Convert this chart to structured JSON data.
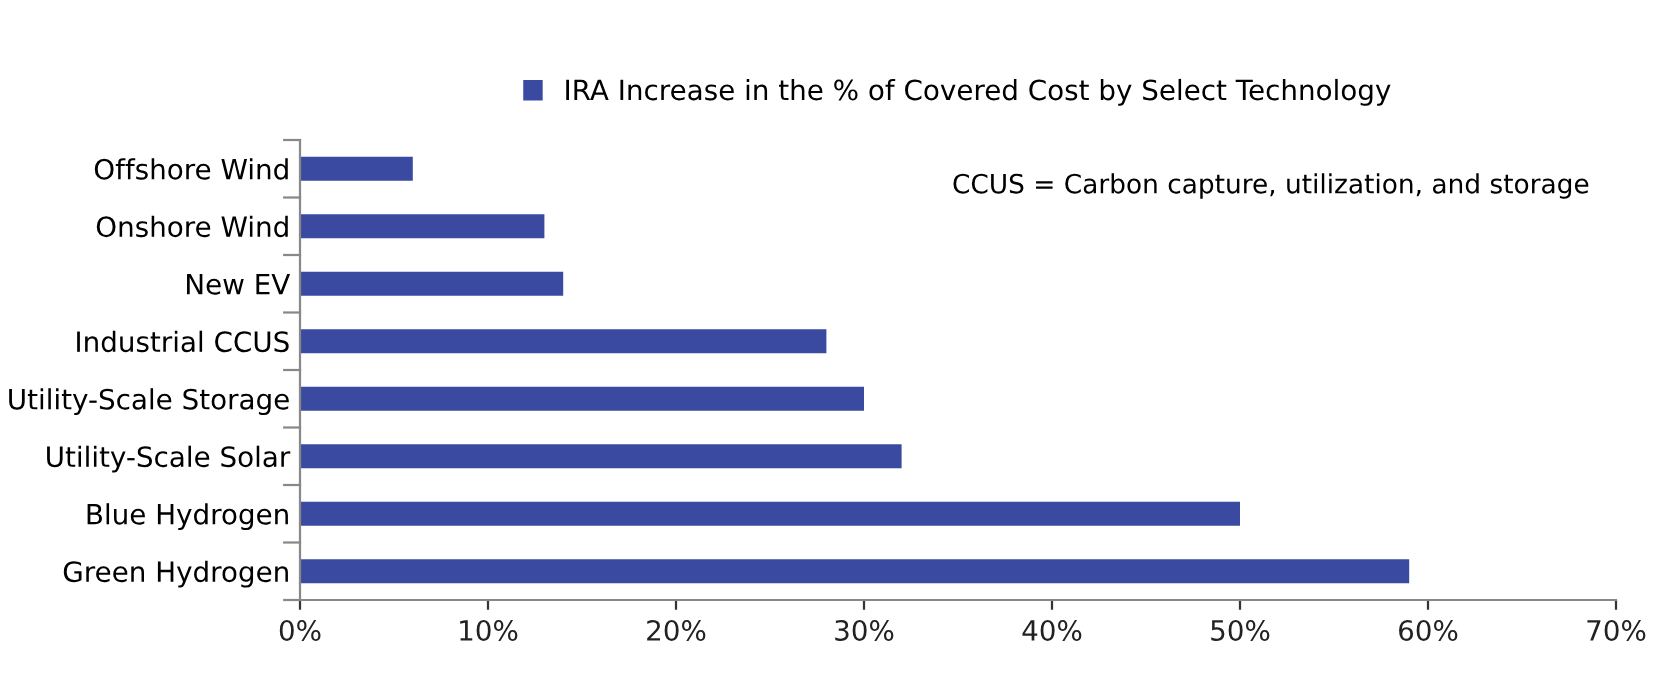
{
  "chart_data": {
    "type": "bar",
    "orientation": "horizontal",
    "categories": [
      "Offshore Wind",
      "Onshore Wind",
      "New EV",
      "Industrial CCUS",
      "Utility-Scale Storage",
      "Utility-Scale Solar",
      "Blue Hydrogen",
      "Green Hydrogen"
    ],
    "series": [
      {
        "name": "IRA Increase in the % of Covered Cost by Select Technology",
        "color": "#3a4aa0",
        "values": [
          6,
          13,
          14,
          28,
          30,
          32,
          50,
          59
        ]
      }
    ],
    "xlim": [
      0,
      70
    ],
    "xticks": [
      {
        "value": 0,
        "label": "0%"
      },
      {
        "value": 10,
        "label": "10%"
      },
      {
        "value": 20,
        "label": "20%"
      },
      {
        "value": 30,
        "label": "30%"
      },
      {
        "value": 40,
        "label": "40%"
      },
      {
        "value": 50,
        "label": "50%"
      },
      {
        "value": 60,
        "label": "60%"
      },
      {
        "value": 70,
        "label": "70%"
      }
    ],
    "annotations": [
      "CCUS = Carbon capture, utilization, and storage"
    ],
    "legend": "top",
    "grid": false
  }
}
